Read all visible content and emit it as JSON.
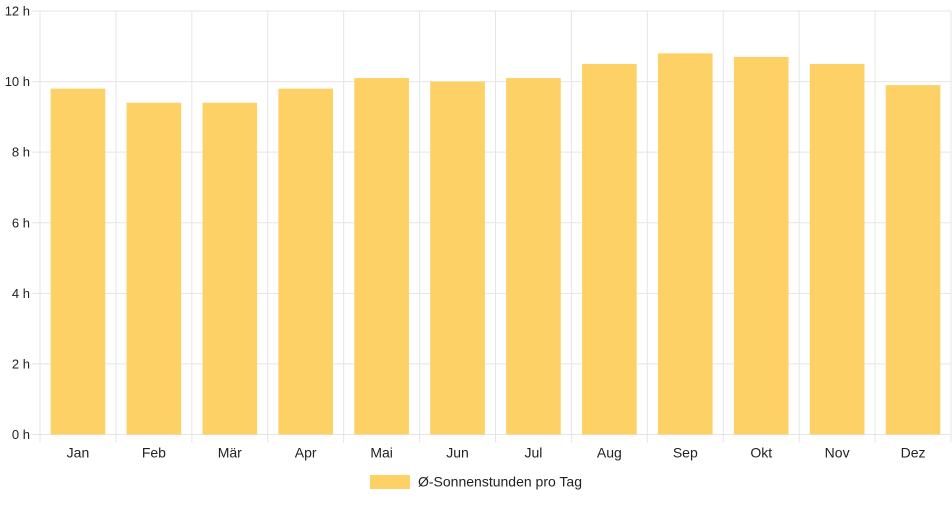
{
  "chart_data": {
    "type": "bar",
    "categories": [
      "Jan",
      "Feb",
      "Mär",
      "Apr",
      "Mai",
      "Jun",
      "Jul",
      "Aug",
      "Sep",
      "Okt",
      "Nov",
      "Dez"
    ],
    "series": [
      {
        "name": "Ø-Sonnenstunden pro Tag",
        "values": [
          9.8,
          9.4,
          9.4,
          9.8,
          10.1,
          10.0,
          10.1,
          10.5,
          10.8,
          10.7,
          10.5,
          9.9
        ]
      }
    ],
    "yticks": [
      "0 h",
      "2 h",
      "4 h",
      "6 h",
      "8 h",
      "10 h",
      "12 h"
    ],
    "ylim": [
      0,
      12
    ],
    "grid": true,
    "legend_position": "bottom",
    "colors": {
      "bar_fill": "#fdd166",
      "grid": "#e5e5e5",
      "axis_text": "#222222"
    }
  }
}
